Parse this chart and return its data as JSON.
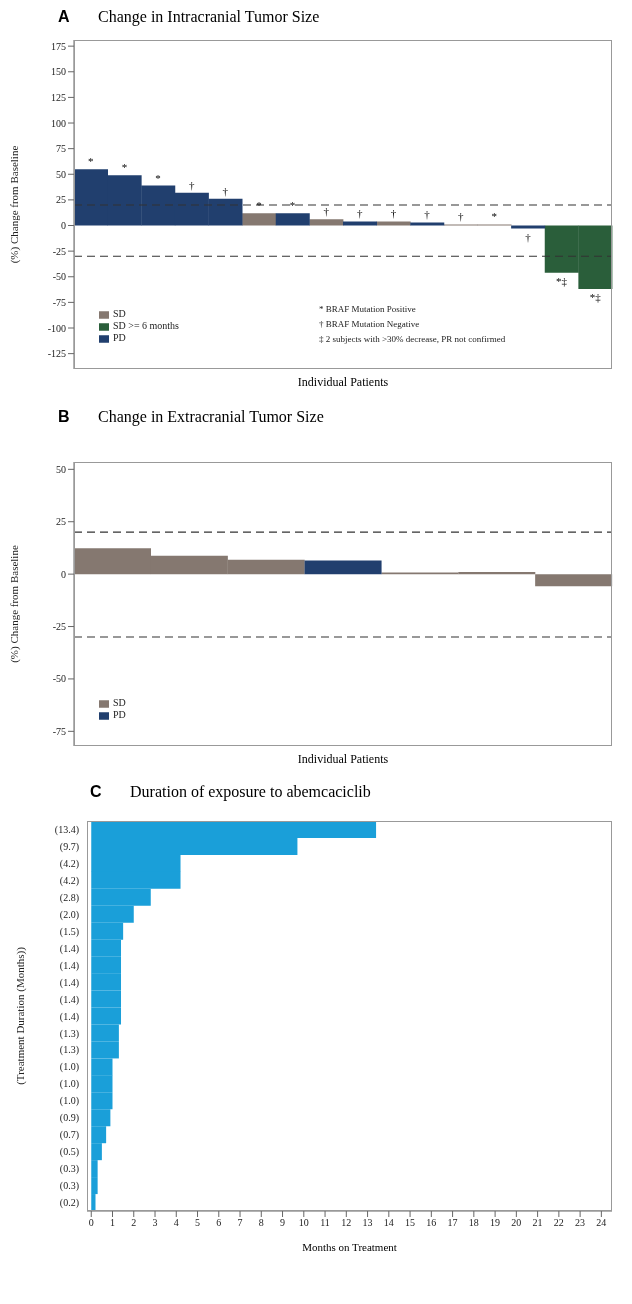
{
  "chart_data": [
    {
      "type": "bar",
      "title": "Change in Intracranial Tumor Size",
      "ylabel": "(%) Change from Baseline",
      "xlabel": "Individual Patients",
      "annotations": [
        "A",
        "* BRAF Mutation Positive",
        "† BRAF Mutation Negative",
        "‡ 2 subjects with >30% decrease, PR not confirmed"
      ],
      "categories": [
        null,
        null,
        null,
        null,
        null,
        null,
        null,
        null,
        null,
        null,
        null,
        null,
        null,
        null,
        null,
        null
      ],
      "stacked": true,
      "series": [
        {
          "name": "SD",
          "color": "#857870",
          "values": [
            null,
            null,
            null,
            null,
            null,
            12,
            null,
            6,
            null,
            4,
            null,
            1,
            1,
            null,
            null,
            null
          ]
        },
        {
          "name": "SD >= 6 months",
          "color": "#2a5e3a",
          "values": [
            null,
            null,
            null,
            null,
            null,
            null,
            null,
            null,
            null,
            null,
            null,
            null,
            null,
            null,
            -46,
            -62
          ]
        },
        {
          "name": "PD",
          "color": "#213f6e",
          "values": [
            55,
            49,
            39,
            32,
            26,
            null,
            12,
            null,
            4,
            null,
            3,
            null,
            null,
            -3,
            null,
            null
          ]
        }
      ],
      "value_labels": [
        "*",
        "*",
        "*",
        "†",
        "†",
        "*",
        "*",
        "†",
        "†",
        "†",
        "†",
        "†",
        "*",
        "†",
        "*‡",
        "*‡"
      ],
      "ylim": [
        -140,
        181
      ],
      "yticks": [
        -125,
        -100,
        -75,
        -50,
        -25,
        0,
        25,
        50,
        75,
        100,
        125,
        150,
        175
      ],
      "ref_lines": [
        {
          "axis": "y",
          "value": 20,
          "line_style": "dashed",
          "color": "#333333"
        },
        {
          "axis": "y",
          "value": -30,
          "line_style": "dashed",
          "color": "#333333"
        }
      ],
      "legend": "bottom left",
      "tick_labels": "y"
    },
    {
      "type": "bar",
      "title": "Change in Extracranial Tumor Size",
      "ylabel": "(%) Change from Baseline",
      "xlabel": "Individual Patients",
      "annotations": [
        "B"
      ],
      "categories": [
        null,
        null,
        null,
        null,
        null,
        null,
        null
      ],
      "stacked": true,
      "series": [
        {
          "name": "SD",
          "color": "#857870",
          "values": [
            12.3,
            8.8,
            6.9,
            null,
            0.8,
            1,
            -5.8
          ]
        },
        {
          "name": "PD",
          "color": "#213f6e",
          "values": [
            null,
            null,
            null,
            6.5,
            null,
            null,
            null
          ]
        }
      ],
      "ylim": [
        -82,
        53.5
      ],
      "yticks": [
        -75,
        -50,
        -25,
        0,
        25,
        50
      ],
      "ref_lines": [
        {
          "axis": "y",
          "value": 20,
          "line_style": "dashed",
          "color": "#333333"
        },
        {
          "axis": "y",
          "value": -30,
          "line_style": "dashed",
          "color": "#333333"
        }
      ],
      "legend": "bottom left",
      "tick_labels": "y"
    },
    {
      "type": "bar",
      "orientation": "horizontal",
      "title": "Duration of exposure to abemcaciclib",
      "ylabel": "(Treatment Duration (Months))",
      "xlabel": "Months on Treatment",
      "annotations": [
        "C"
      ],
      "categories": [
        "(13.4)",
        "(9.7)",
        "(4.2)",
        "(4.2)",
        "(2.8)",
        "(2.0)",
        "(1.5)",
        "(1.4)",
        "(1.4)",
        "(1.4)",
        "(1.4)",
        "(1.4)",
        "(1.3)",
        "(1.3)",
        "(1.0)",
        "(1.0)",
        "(1.0)",
        "(0.9)",
        "(0.7)",
        "(0.5)",
        "(0.3)",
        "(0.3)",
        "(0.2)"
      ],
      "values": [
        13.4,
        9.7,
        4.2,
        4.2,
        2.8,
        2.0,
        1.5,
        1.4,
        1.4,
        1.4,
        1.4,
        1.4,
        1.3,
        1.3,
        1.0,
        1.0,
        1.0,
        0.9,
        0.7,
        0.5,
        0.3,
        0.3,
        0.2
      ],
      "color": "#1a9fd9",
      "xlim": [
        -0.2,
        24.5
      ],
      "xticks": [
        0,
        1,
        2,
        3,
        4,
        5,
        6,
        7,
        8,
        9,
        10,
        11,
        12,
        13,
        14,
        15,
        16,
        17,
        18,
        19,
        20,
        21,
        22,
        23,
        24
      ]
    }
  ]
}
